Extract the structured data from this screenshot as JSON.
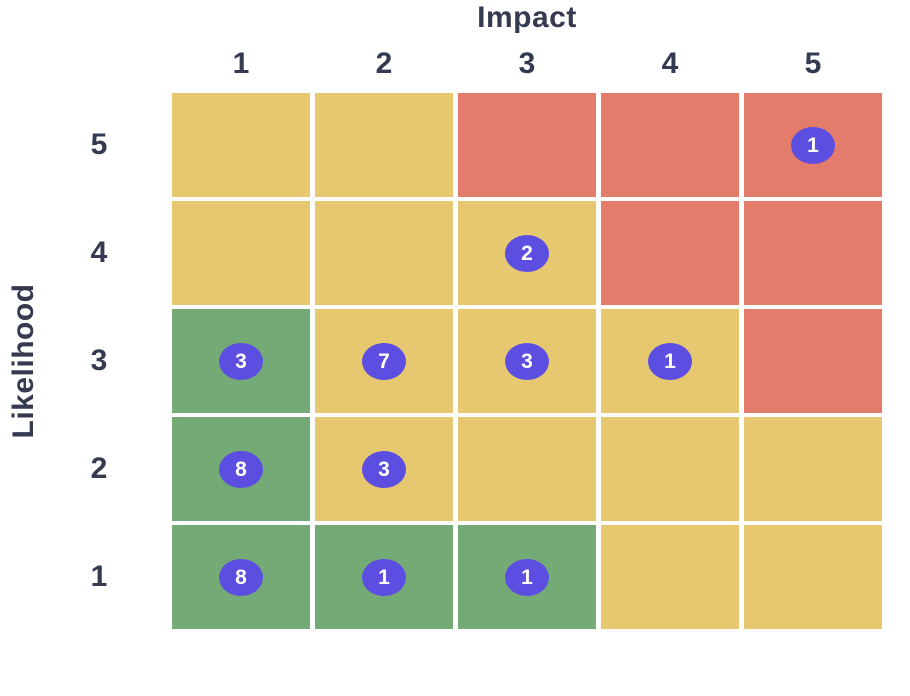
{
  "chart_data": {
    "type": "heatmap",
    "subtype": "risk-matrix",
    "xlabel": "Impact",
    "ylabel": "Likelihood",
    "x_categories": [
      "1",
      "2",
      "3",
      "4",
      "5"
    ],
    "y_categories": [
      "5",
      "4",
      "3",
      "2",
      "1"
    ],
    "legend": "none",
    "grid_gap_visible": true,
    "colors": {
      "low": "#73aa75",
      "medium": "#e6c870",
      "high": "#e47c6c",
      "badge": "#5b4ee1",
      "badge_text": "#ffffff",
      "label_text": "#353a50",
      "background": "#ffffff"
    },
    "rows": [
      {
        "likelihood": "5",
        "cells": [
          {
            "impact": "1",
            "level": "medium",
            "count": null
          },
          {
            "impact": "2",
            "level": "medium",
            "count": null
          },
          {
            "impact": "3",
            "level": "high",
            "count": null
          },
          {
            "impact": "4",
            "level": "high",
            "count": null
          },
          {
            "impact": "5",
            "level": "high",
            "count": 1
          }
        ]
      },
      {
        "likelihood": "4",
        "cells": [
          {
            "impact": "1",
            "level": "medium",
            "count": null
          },
          {
            "impact": "2",
            "level": "medium",
            "count": null
          },
          {
            "impact": "3",
            "level": "medium",
            "count": 2
          },
          {
            "impact": "4",
            "level": "high",
            "count": null
          },
          {
            "impact": "5",
            "level": "high",
            "count": null
          }
        ]
      },
      {
        "likelihood": "3",
        "cells": [
          {
            "impact": "1",
            "level": "low",
            "count": 3
          },
          {
            "impact": "2",
            "level": "medium",
            "count": 7
          },
          {
            "impact": "3",
            "level": "medium",
            "count": 3
          },
          {
            "impact": "4",
            "level": "medium",
            "count": 1
          },
          {
            "impact": "5",
            "level": "high",
            "count": null
          }
        ]
      },
      {
        "likelihood": "2",
        "cells": [
          {
            "impact": "1",
            "level": "low",
            "count": 8
          },
          {
            "impact": "2",
            "level": "medium",
            "count": 3
          },
          {
            "impact": "3",
            "level": "medium",
            "count": null
          },
          {
            "impact": "4",
            "level": "medium",
            "count": null
          },
          {
            "impact": "5",
            "level": "medium",
            "count": null
          }
        ]
      },
      {
        "likelihood": "1",
        "cells": [
          {
            "impact": "1",
            "level": "low",
            "count": 8
          },
          {
            "impact": "2",
            "level": "low",
            "count": 1
          },
          {
            "impact": "3",
            "level": "low",
            "count": 1
          },
          {
            "impact": "4",
            "level": "medium",
            "count": null
          },
          {
            "impact": "5",
            "level": "medium",
            "count": null
          }
        ]
      }
    ]
  }
}
